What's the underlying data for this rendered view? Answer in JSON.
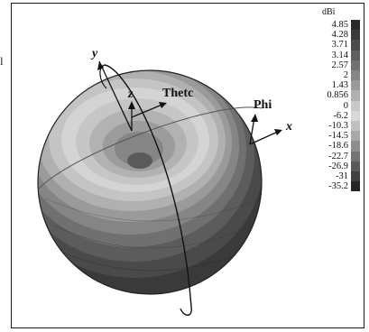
{
  "legend": {
    "unit": "dBi",
    "levels": [
      {
        "label": "4.85",
        "color": "#2a2a2a"
      },
      {
        "label": "4.28",
        "color": "#3a3a3a"
      },
      {
        "label": "3.71",
        "color": "#4c4c4c"
      },
      {
        "label": "3.14",
        "color": "#5e5e5e"
      },
      {
        "label": "2.57",
        "color": "#727272"
      },
      {
        "label": "2",
        "color": "#868686"
      },
      {
        "label": "1.43",
        "color": "#9a9a9a"
      },
      {
        "label": "0.856",
        "color": "#b0b0b0"
      },
      {
        "label": "0",
        "color": "#c8c8c8"
      },
      {
        "label": "-6.2",
        "color": "#d8d8d8"
      },
      {
        "label": "-10.3",
        "color": "#c0c0c0"
      },
      {
        "label": "-14.5",
        "color": "#a8a8a8"
      },
      {
        "label": "-18.6",
        "color": "#8e8e8e"
      },
      {
        "label": "-22.7",
        "color": "#747474"
      },
      {
        "label": "-26.9",
        "color": "#5a5a5a"
      },
      {
        "label": "-31",
        "color": "#404040"
      },
      {
        "label": "-35.2",
        "color": "#262626"
      }
    ]
  },
  "axes": {
    "y": "y",
    "z": "z",
    "x": "x"
  },
  "annotations": {
    "theta": "Thetc",
    "phi": "Phi"
  },
  "stray_text": "l",
  "colors": {
    "sphere_dark": "#2e2e2e",
    "sphere_light": "#dcdcdc",
    "frame": "#1a1a1a"
  }
}
